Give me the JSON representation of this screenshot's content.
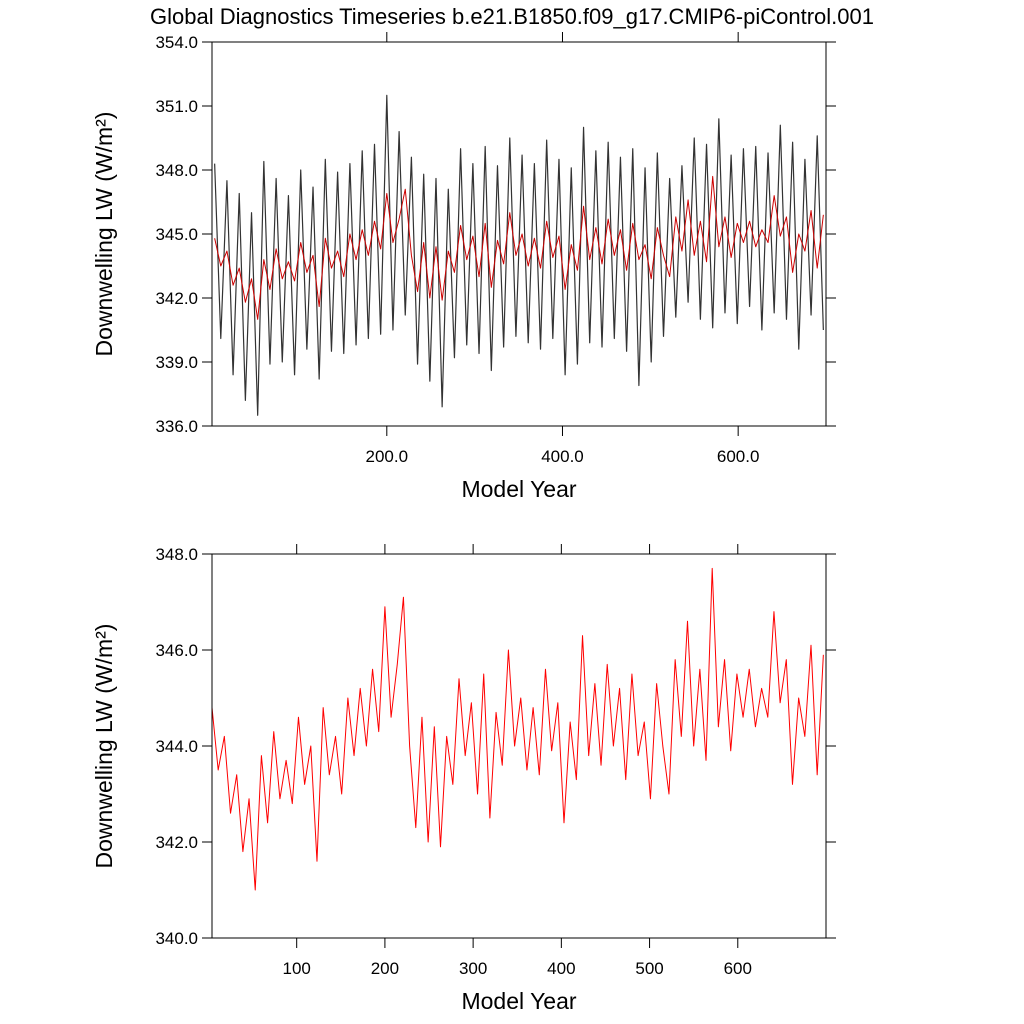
{
  "chart_data": [
    {
      "type": "line",
      "title": "Global Diagnostics Timeseries b.e21.B1850.f09_g17.CMIP6-piControl.001",
      "xlabel": "Model Year",
      "ylabel": "Downwelling LW (W/m²)",
      "xlim": [
        1,
        700
      ],
      "ylim": [
        336,
        354
      ],
      "xticks": [
        {
          "value": 200,
          "label": "200.0"
        },
        {
          "value": 400,
          "label": "400.0"
        },
        {
          "value": 600,
          "label": "600.0"
        }
      ],
      "yticks": [
        {
          "value": 336,
          "label": "336.0"
        },
        {
          "value": 339,
          "label": "339.0"
        },
        {
          "value": 342,
          "label": "342.0"
        },
        {
          "value": 345,
          "label": "345.0"
        },
        {
          "value": 348,
          "label": "348.0"
        },
        {
          "value": 351,
          "label": "351.0"
        },
        {
          "value": 354,
          "label": "354.0"
        }
      ],
      "x": [
        4,
        11,
        18,
        25,
        32,
        39,
        46,
        53,
        60,
        67,
        74,
        81,
        88,
        95,
        102,
        109,
        116,
        123,
        130,
        137,
        144,
        151,
        158,
        165,
        172,
        179,
        186,
        193,
        200,
        207,
        214,
        221,
        228,
        235,
        242,
        249,
        256,
        263,
        270,
        277,
        284,
        291,
        298,
        305,
        312,
        319,
        326,
        333,
        340,
        347,
        354,
        361,
        368,
        375,
        382,
        389,
        396,
        403,
        410,
        417,
        424,
        431,
        438,
        445,
        452,
        459,
        466,
        473,
        480,
        487,
        494,
        501,
        508,
        515,
        522,
        529,
        536,
        543,
        550,
        557,
        564,
        571,
        578,
        585,
        592,
        599,
        606,
        613,
        620,
        627,
        634,
        641,
        648,
        655,
        662,
        669,
        676,
        683,
        690,
        697
      ],
      "series": [
        {
          "color": "#333333",
          "values": [
            348.3,
            340.1,
            347.5,
            338.4,
            346.9,
            337.2,
            346.0,
            336.5,
            348.4,
            338.9,
            347.6,
            339.0,
            346.8,
            338.4,
            348.0,
            339.6,
            347.2,
            338.2,
            348.5,
            339.5,
            347.9,
            339.4,
            348.3,
            339.8,
            348.9,
            340.1,
            349.2,
            340.3,
            351.5,
            340.5,
            349.8,
            341.2,
            348.6,
            338.9,
            347.8,
            338.1,
            347.6,
            336.9,
            347.1,
            339.2,
            349.0,
            339.8,
            348.3,
            339.4,
            349.1,
            338.6,
            348.2,
            339.7,
            349.5,
            340.2,
            348.7,
            339.9,
            348.3,
            339.6,
            349.4,
            340.1,
            348.5,
            338.4,
            348.1,
            338.9,
            350.0,
            339.9,
            348.9,
            339.7,
            349.3,
            340.1,
            348.6,
            339.5,
            349.0,
            337.9,
            348.1,
            339.0,
            348.8,
            340.2,
            347.6,
            341.1,
            348.2,
            341.8,
            349.5,
            341.0,
            349.2,
            340.6,
            350.4,
            341.3,
            348.7,
            340.8,
            349.0,
            341.6,
            349.1,
            340.5,
            348.8,
            341.3,
            350.1,
            341.0,
            349.3,
            339.6,
            348.5,
            341.2,
            349.6,
            340.5
          ]
        },
        {
          "color": "#cc0000",
          "values": [
            344.8,
            343.5,
            344.2,
            342.6,
            343.4,
            341.8,
            342.9,
            341.0,
            343.8,
            342.4,
            344.3,
            342.9,
            343.7,
            342.8,
            344.6,
            343.2,
            344.0,
            341.6,
            344.8,
            343.4,
            344.2,
            343.0,
            345.0,
            343.8,
            345.2,
            344.0,
            345.6,
            344.3,
            346.9,
            344.6,
            345.7,
            347.1,
            344.0,
            342.3,
            344.6,
            342.0,
            344.4,
            341.9,
            344.2,
            343.2,
            345.4,
            343.8,
            344.9,
            343.0,
            345.5,
            342.5,
            344.7,
            343.6,
            346.0,
            344.0,
            345.0,
            343.5,
            344.8,
            343.4,
            345.6,
            343.9,
            344.9,
            342.4,
            344.5,
            343.3,
            346.3,
            343.8,
            345.3,
            343.6,
            345.7,
            344.0,
            345.2,
            343.3,
            345.5,
            343.8,
            344.5,
            342.9,
            345.3,
            344.0,
            343.0,
            345.8,
            344.2,
            346.6,
            344.0,
            345.6,
            343.7,
            347.7,
            344.4,
            345.8,
            343.9,
            345.5,
            344.6,
            345.6,
            344.4,
            345.2,
            344.6,
            346.8,
            344.9,
            345.8,
            343.2,
            345.0,
            344.2,
            346.1,
            343.4,
            345.9
          ]
        }
      ]
    },
    {
      "type": "line",
      "xlabel": "Model Year",
      "ylabel": "Downwelling LW (W/m²)",
      "xlim": [
        4,
        700
      ],
      "ylim": [
        340,
        348
      ],
      "xticks": [
        100,
        200,
        300,
        400,
        500,
        600
      ],
      "yticks": [
        {
          "value": 340,
          "label": "340.0"
        },
        {
          "value": 342,
          "label": "342.0"
        },
        {
          "value": 344,
          "label": "344.0"
        },
        {
          "value": 346,
          "label": "346.0"
        },
        {
          "value": 348,
          "label": "348.0"
        }
      ],
      "x": [
        4,
        11,
        18,
        25,
        32,
        39,
        46,
        53,
        60,
        67,
        74,
        81,
        88,
        95,
        102,
        109,
        116,
        123,
        130,
        137,
        144,
        151,
        158,
        165,
        172,
        179,
        186,
        193,
        200,
        207,
        214,
        221,
        228,
        235,
        242,
        249,
        256,
        263,
        270,
        277,
        284,
        291,
        298,
        305,
        312,
        319,
        326,
        333,
        340,
        347,
        354,
        361,
        368,
        375,
        382,
        389,
        396,
        403,
        410,
        417,
        424,
        431,
        438,
        445,
        452,
        459,
        466,
        473,
        480,
        487,
        494,
        501,
        508,
        515,
        522,
        529,
        536,
        543,
        550,
        557,
        564,
        571,
        578,
        585,
        592,
        599,
        606,
        613,
        620,
        627,
        634,
        641,
        648,
        655,
        662,
        669,
        676,
        683,
        690,
        697
      ],
      "series": [
        {
          "color": "#ff0000",
          "values": [
            344.8,
            343.5,
            344.2,
            342.6,
            343.4,
            341.8,
            342.9,
            341.0,
            343.8,
            342.4,
            344.3,
            342.9,
            343.7,
            342.8,
            344.6,
            343.2,
            344.0,
            341.6,
            344.8,
            343.4,
            344.2,
            343.0,
            345.0,
            343.8,
            345.2,
            344.0,
            345.6,
            344.3,
            346.9,
            344.6,
            345.7,
            347.1,
            344.0,
            342.3,
            344.6,
            342.0,
            344.4,
            341.9,
            344.2,
            343.2,
            345.4,
            343.8,
            344.9,
            343.0,
            345.5,
            342.5,
            344.7,
            343.6,
            346.0,
            344.0,
            345.0,
            343.5,
            344.8,
            343.4,
            345.6,
            343.9,
            344.9,
            342.4,
            344.5,
            343.3,
            346.3,
            343.8,
            345.3,
            343.6,
            345.7,
            344.0,
            345.2,
            343.3,
            345.5,
            343.8,
            344.5,
            342.9,
            345.3,
            344.0,
            343.0,
            345.8,
            344.2,
            346.6,
            344.0,
            345.6,
            343.7,
            347.7,
            344.4,
            345.8,
            343.9,
            345.5,
            344.6,
            345.6,
            344.4,
            345.2,
            344.6,
            346.8,
            344.9,
            345.8,
            343.2,
            345.0,
            344.2,
            346.1,
            343.4,
            345.9
          ]
        }
      ]
    }
  ]
}
